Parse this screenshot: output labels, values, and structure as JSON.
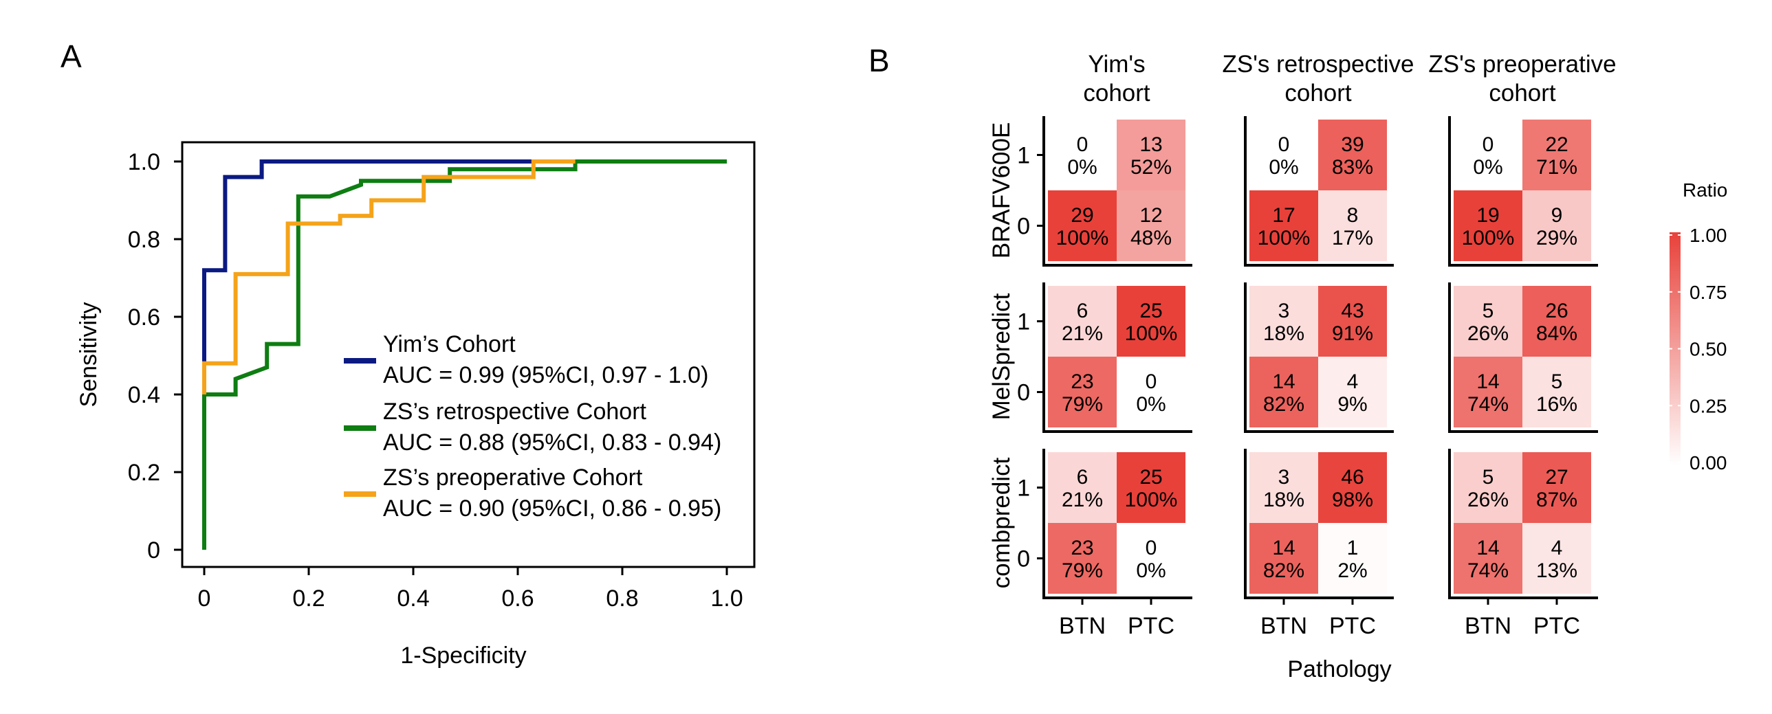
{
  "panels": {
    "a": "A",
    "b": "B"
  },
  "chart_data": [
    {
      "type": "line",
      "xlabel": "1-Specificity",
      "ylabel": "Sensitivity",
      "xlim": [
        0,
        1.0
      ],
      "ylim": [
        0,
        1.0
      ],
      "x_ticks": [
        "0",
        "0.2",
        "0.4",
        "0.6",
        "0.8",
        "1.0"
      ],
      "y_ticks": [
        "0",
        "0.2",
        "0.4",
        "0.6",
        "0.8",
        "1.0"
      ],
      "grid": false,
      "legend_position": "bottom-right",
      "series": [
        {
          "name": "Yim’s Cohort",
          "auc_label": "AUC = 0.99 (95%CI, 0.97 - 1.0)",
          "color": "#0b1a82",
          "x": [
            0.0,
            0.0,
            0.04,
            0.04,
            0.11,
            0.11,
            0.63
          ],
          "y": [
            0.48,
            0.72,
            0.72,
            0.96,
            0.96,
            1.0,
            1.0
          ]
        },
        {
          "name": "ZS’s retrospective Cohort",
          "auc_label": "AUC = 0.88 (95%CI, 0.83 - 0.94)",
          "color": "#0e7d12",
          "x": [
            0.0,
            0.0,
            0.06,
            0.06,
            0.12,
            0.12,
            0.18,
            0.18,
            0.24,
            0.3,
            0.3,
            0.47,
            0.47,
            0.71,
            0.71,
            1.0
          ],
          "y": [
            0.0,
            0.4,
            0.4,
            0.44,
            0.47,
            0.53,
            0.53,
            0.91,
            0.91,
            0.94,
            0.95,
            0.95,
            0.98,
            0.98,
            1.0,
            1.0
          ]
        },
        {
          "name": "ZS’s preoperative Cohort",
          "auc_label": "AUC = 0.90 (95%CI, 0.86 - 0.95)",
          "color": "#f5a31a",
          "x": [
            0.0,
            0.0,
            0.06,
            0.06,
            0.16,
            0.16,
            0.26,
            0.26,
            0.32,
            0.32,
            0.42,
            0.42,
            0.63,
            0.63,
            0.71
          ],
          "y": [
            0.4,
            0.48,
            0.48,
            0.71,
            0.71,
            0.84,
            0.84,
            0.86,
            0.86,
            0.9,
            0.9,
            0.96,
            0.96,
            1.0,
            1.0
          ]
        }
      ]
    },
    {
      "type": "heatmap",
      "xlabel": "Pathology",
      "x_categories": [
        "BTN",
        "PTC"
      ],
      "y_categories": [
        "1",
        "0"
      ],
      "columns": [
        "Yim's\ncohort",
        "ZS's retrospective\ncohort",
        "ZS's preoperative\ncohort"
      ],
      "rows": [
        "BRAFV600E",
        "MelSpredict",
        "combpredict"
      ],
      "colorbar": {
        "title": "Ratio",
        "ticks": [
          "1.00",
          "0.75",
          "0.50",
          "0.25",
          "0.00"
        ],
        "low": "#ffffff",
        "high": "#e8413a"
      },
      "cells": [
        [
          [
            [
              {
                "n": "0",
                "pct": "0%",
                "ratio": 0.0
              },
              {
                "n": "13",
                "pct": "52%",
                "ratio": 0.52
              }
            ],
            [
              {
                "n": "29",
                "pct": "100%",
                "ratio": 1.0
              },
              {
                "n": "12",
                "pct": "48%",
                "ratio": 0.48
              }
            ]
          ],
          [
            [
              {
                "n": "0",
                "pct": "0%",
                "ratio": 0.0
              },
              {
                "n": "39",
                "pct": "83%",
                "ratio": 0.83
              }
            ],
            [
              {
                "n": "17",
                "pct": "100%",
                "ratio": 1.0
              },
              {
                "n": "8",
                "pct": "17%",
                "ratio": 0.17
              }
            ]
          ],
          [
            [
              {
                "n": "0",
                "pct": "0%",
                "ratio": 0.0
              },
              {
                "n": "22",
                "pct": "71%",
                "ratio": 0.71
              }
            ],
            [
              {
                "n": "19",
                "pct": "100%",
                "ratio": 1.0
              },
              {
                "n": "9",
                "pct": "29%",
                "ratio": 0.29
              }
            ]
          ]
        ],
        [
          [
            [
              {
                "n": "6",
                "pct": "21%",
                "ratio": 0.21
              },
              {
                "n": "25",
                "pct": "100%",
                "ratio": 1.0
              }
            ],
            [
              {
                "n": "23",
                "pct": "79%",
                "ratio": 0.79
              },
              {
                "n": "0",
                "pct": "0%",
                "ratio": 0.0
              }
            ]
          ],
          [
            [
              {
                "n": "3",
                "pct": "18%",
                "ratio": 0.18
              },
              {
                "n": "43",
                "pct": "91%",
                "ratio": 0.91
              }
            ],
            [
              {
                "n": "14",
                "pct": "82%",
                "ratio": 0.82
              },
              {
                "n": "4",
                "pct": "9%",
                "ratio": 0.09
              }
            ]
          ],
          [
            [
              {
                "n": "5",
                "pct": "26%",
                "ratio": 0.26
              },
              {
                "n": "26",
                "pct": "84%",
                "ratio": 0.84
              }
            ],
            [
              {
                "n": "14",
                "pct": "74%",
                "ratio": 0.74
              },
              {
                "n": "5",
                "pct": "16%",
                "ratio": 0.16
              }
            ]
          ]
        ],
        [
          [
            [
              {
                "n": "6",
                "pct": "21%",
                "ratio": 0.21
              },
              {
                "n": "25",
                "pct": "100%",
                "ratio": 1.0
              }
            ],
            [
              {
                "n": "23",
                "pct": "79%",
                "ratio": 0.79
              },
              {
                "n": "0",
                "pct": "0%",
                "ratio": 0.0
              }
            ]
          ],
          [
            [
              {
                "n": "3",
                "pct": "18%",
                "ratio": 0.18
              },
              {
                "n": "46",
                "pct": "98%",
                "ratio": 0.98
              }
            ],
            [
              {
                "n": "14",
                "pct": "82%",
                "ratio": 0.82
              },
              {
                "n": "1",
                "pct": "2%",
                "ratio": 0.02
              }
            ]
          ],
          [
            [
              {
                "n": "5",
                "pct": "26%",
                "ratio": 0.26
              },
              {
                "n": "27",
                "pct": "87%",
                "ratio": 0.87
              }
            ],
            [
              {
                "n": "14",
                "pct": "74%",
                "ratio": 0.74
              },
              {
                "n": "4",
                "pct": "13%",
                "ratio": 0.13
              }
            ]
          ]
        ]
      ]
    }
  ]
}
